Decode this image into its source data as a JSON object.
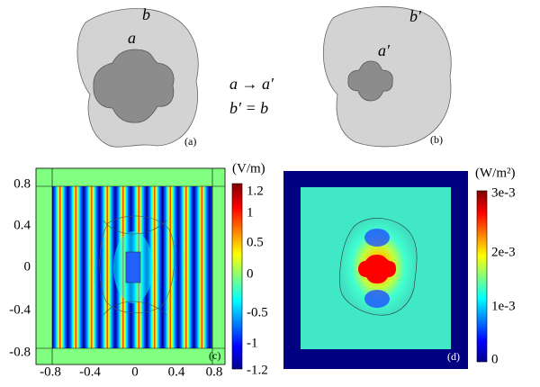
{
  "panel_a": {
    "outer_label": "b",
    "inner_label": "a",
    "caption": "(a)"
  },
  "transform": {
    "line1": "a → a′",
    "line2": "b′ = b"
  },
  "panel_b": {
    "outer_label": "b′",
    "inner_label": "a′",
    "caption": "(b)"
  },
  "panel_c": {
    "y_ticks": [
      "0.8",
      "0.4",
      "0",
      "-0.4",
      "-0.8"
    ],
    "x_ticks": [
      "-0.8",
      "-0.4",
      "0",
      "0.4",
      "0.8"
    ],
    "colorbar_unit": "(V/m)",
    "colorbar_ticks": [
      "1.2",
      "1",
      "0.5",
      "0",
      "-0.5",
      "-1",
      "-1.2"
    ],
    "caption": "(c)"
  },
  "panel_d": {
    "colorbar_unit": "(W/m²)",
    "colorbar_ticks": [
      "3e-3",
      "2e-3",
      "1e-3",
      "0"
    ],
    "caption": "(d)"
  }
}
